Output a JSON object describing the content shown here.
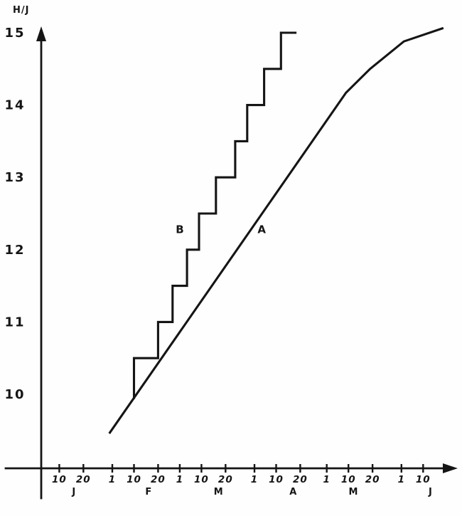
{
  "figure": {
    "ink_color": "#151515",
    "paper_color": "#fefefe",
    "y_axis_unit_label": "H/J"
  },
  "chart_data": {
    "type": "line",
    "title": "",
    "xlabel": "",
    "ylabel": "H/J",
    "grid": "off",
    "legend": "inline-curve-labels",
    "ylim": [
      9.3,
      15.3
    ],
    "y_ticks": [
      10,
      11,
      12,
      13,
      14,
      15
    ],
    "x_axis": {
      "unit": "day_of_year",
      "months_shown": [
        "J",
        "F",
        "M",
        "A",
        "M",
        "J"
      ],
      "tick_labels": [
        {
          "label": "10",
          "day": 10
        },
        {
          "label": "20",
          "day": 20
        },
        {
          "label": "1",
          "day": 32
        },
        {
          "label": "10",
          "day": 41
        },
        {
          "label": "20",
          "day": 51
        },
        {
          "label": "1",
          "day": 60
        },
        {
          "label": "10",
          "day": 69
        },
        {
          "label": "20",
          "day": 79
        },
        {
          "label": "1",
          "day": 91
        },
        {
          "label": "10",
          "day": 100
        },
        {
          "label": "20",
          "day": 110
        },
        {
          "label": "1",
          "day": 121
        },
        {
          "label": "10",
          "day": 130
        },
        {
          "label": "20",
          "day": 140
        },
        {
          "label": "1",
          "day": 152
        },
        {
          "label": "10",
          "day": 161
        }
      ],
      "month_labels": [
        {
          "label": "J",
          "day": 16
        },
        {
          "label": "F",
          "day": 47
        },
        {
          "label": "M",
          "day": 76
        },
        {
          "label": "A",
          "day": 107
        },
        {
          "label": "M",
          "day": 132
        },
        {
          "label": "J",
          "day": 164
        }
      ]
    },
    "series": [
      {
        "name": "A",
        "style": "smooth",
        "points": [
          [
            31,
            9.47
          ],
          [
            129,
            14.17
          ],
          [
            139,
            14.5
          ],
          [
            153,
            14.88
          ],
          [
            169,
            15.06
          ]
        ],
        "label": {
          "text": "A",
          "day": 94,
          "value": 12.28
        }
      },
      {
        "name": "B",
        "style": "steps",
        "points": [
          [
            41,
            9.95
          ],
          [
            41,
            10.5
          ],
          [
            51,
            10.5
          ],
          [
            51,
            11
          ],
          [
            57,
            11
          ],
          [
            57,
            11.5
          ],
          [
            63,
            11.5
          ],
          [
            63,
            12
          ],
          [
            68,
            12
          ],
          [
            68,
            12.5
          ],
          [
            75,
            12.5
          ],
          [
            75,
            13
          ],
          [
            83,
            13
          ],
          [
            83,
            13.5
          ],
          [
            88,
            13.5
          ],
          [
            88,
            14
          ],
          [
            95,
            14
          ],
          [
            95,
            14.5
          ],
          [
            102,
            14.5
          ],
          [
            102,
            15
          ],
          [
            108,
            15
          ]
        ],
        "label": {
          "text": "B",
          "day": 60,
          "value": 12.28
        }
      }
    ]
  }
}
